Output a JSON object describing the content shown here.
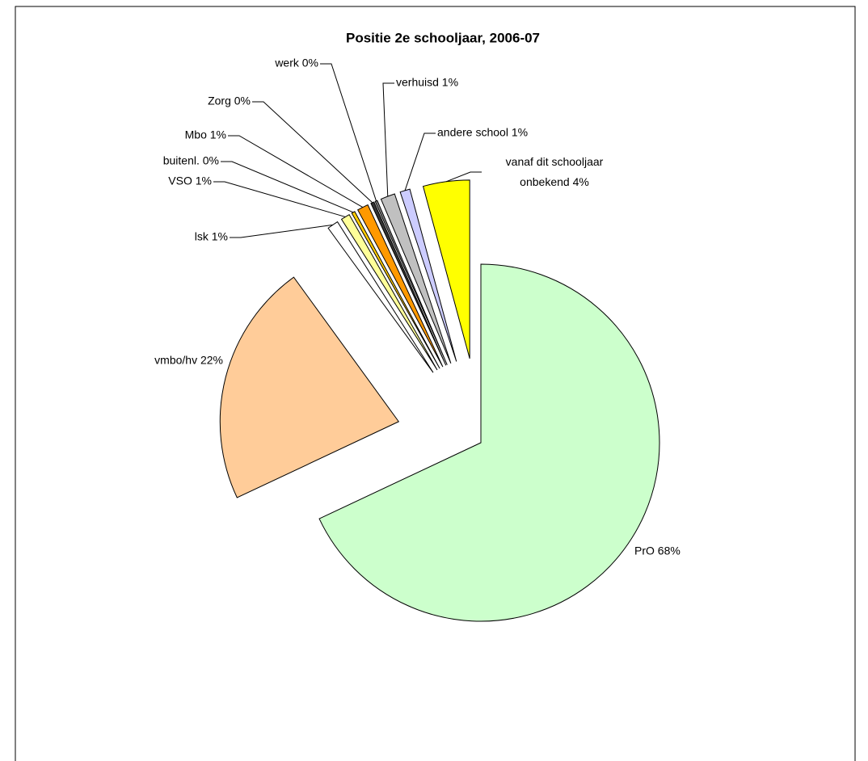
{
  "chart_data": {
    "type": "pie",
    "title": "Positie 2e schooljaar, 2006-07",
    "values": [
      68.0,
      22.0,
      1.0,
      0.8,
      0.3,
      1.0,
      0.3,
      0.2,
      1.3,
      0.9,
      4.2
    ],
    "value_labels": [
      "PrO 68%",
      "vmbo/hv 22%",
      "lsk 1%",
      "VSO 1%",
      "buitenl. 0%",
      "Mbo 1%",
      "Zorg 0%",
      "werk 0%",
      "verhuisd 1%",
      "andere school 1%",
      "vanaf dit schooljaar onbekend 4%"
    ],
    "colors": [
      "#ccffcc",
      "#ffcc99",
      "#ffffff",
      "#ffff99",
      "#ffcc00",
      "#ff9900",
      "#333333",
      "#808080",
      "#c0c0c0",
      "#ccccff",
      "#ffff00"
    ],
    "start_angle": 0,
    "direction": "clockwise"
  }
}
